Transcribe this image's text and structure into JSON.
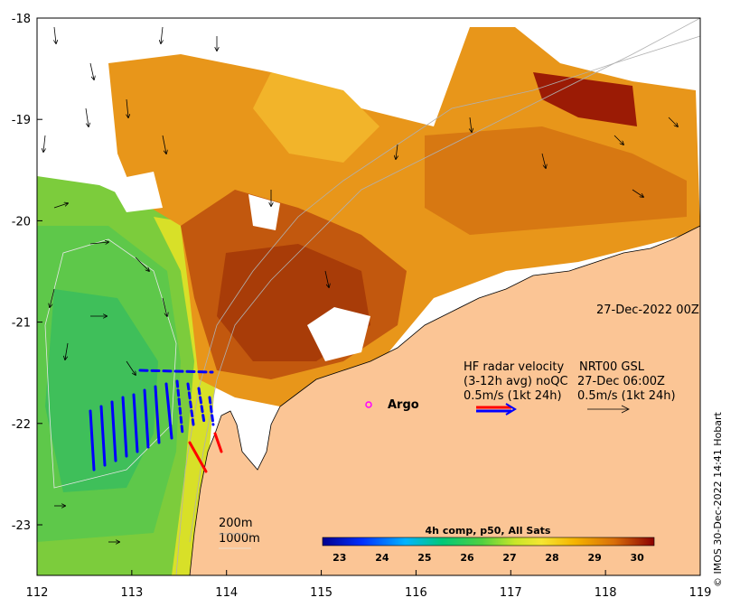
{
  "map": {
    "x_ticks": [
      "112",
      "113",
      "114",
      "115",
      "116",
      "117",
      "118",
      "119"
    ],
    "y_ticks": [
      "-18",
      "-19",
      "-20",
      "-21",
      "-22",
      "-23"
    ],
    "date_label": "27-Dec-2022 00Z",
    "legend": {
      "line1_left": "HF radar velocity",
      "line1_right": "NRT00 GSL",
      "line2_left": "(3-12h avg) noQC",
      "line2_right": "27-Dec 06:00Z",
      "line3_left": "0.5m/s (1kt 24h)",
      "line3_right": "0.5m/s (1kt 24h)"
    },
    "argo_label": "Argo",
    "isobath_200": "200m",
    "isobath_1000": "1000m",
    "colorbar": {
      "title": "4h comp, p50, All Sats",
      "ticks": [
        "23",
        "24",
        "25",
        "26",
        "27",
        "28",
        "29",
        "30"
      ],
      "min": 22.6,
      "max": 30.4
    },
    "credit": "© IMOS 30-Dec-2022 14:41 Hobart",
    "colors": {
      "land": "#fbc595",
      "coastline": "#000000",
      "radar_primary": "#0000ff",
      "radar_secondary": "#ff0000",
      "argo_marker": "#ff00ff"
    }
  }
}
